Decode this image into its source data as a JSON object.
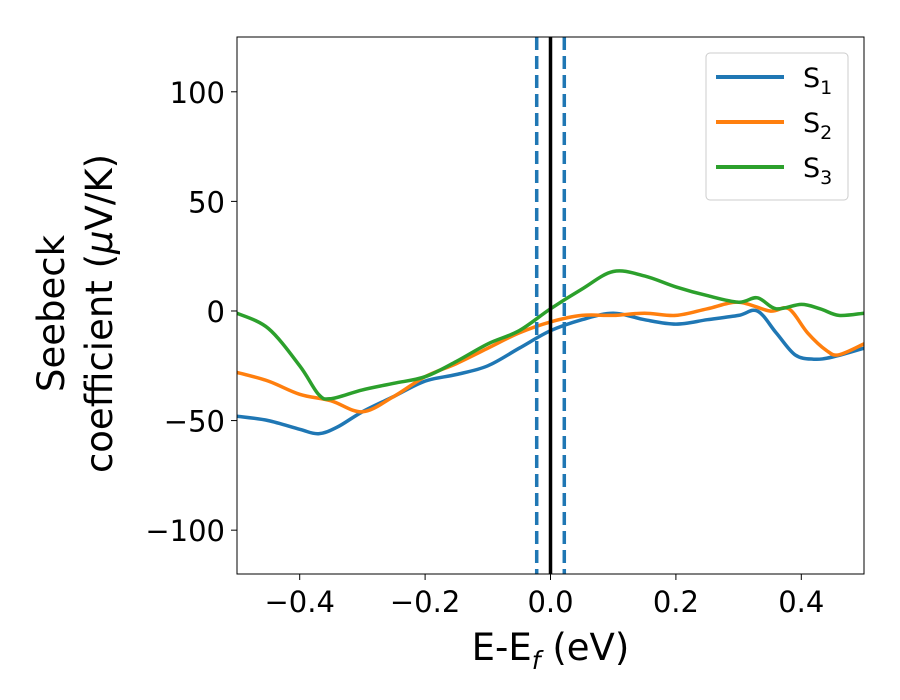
{
  "chart_data": {
    "type": "line",
    "xlabel": {
      "main": "E-E",
      "sub": "f",
      "tail": " (eV)"
    },
    "ylabel": {
      "line1": "Seebeck",
      "line2_pre": "coefficient  (",
      "line2_mu": "μ",
      "line2_post": "V/K)"
    },
    "xlim": [
      -0.5,
      0.5
    ],
    "ylim": [
      -120,
      125
    ],
    "xticks": [
      -0.4,
      -0.2,
      0.0,
      0.2,
      0.4
    ],
    "xtick_labels": [
      "−0.4",
      "−0.2",
      "0.0",
      "0.2",
      "0.4"
    ],
    "yticks": [
      100,
      50,
      0,
      -50,
      -100
    ],
    "ytick_labels": [
      "100",
      "50",
      "0",
      "−50",
      "−100"
    ],
    "grid": false,
    "legend_position": "top-right",
    "reference_lines": [
      {
        "x": 0.0,
        "style": "solid",
        "color": "#000000"
      },
      {
        "x": -0.022,
        "style": "dashed",
        "color": "#1f77b4"
      },
      {
        "x": 0.022,
        "style": "dashed",
        "color": "#1f77b4"
      }
    ],
    "series": [
      {
        "name": "S",
        "sub": "1",
        "color": "#1f77b4",
        "x": [
          -0.5,
          -0.45,
          -0.4,
          -0.37,
          -0.34,
          -0.3,
          -0.25,
          -0.2,
          -0.15,
          -0.1,
          -0.05,
          0.0,
          0.05,
          0.1,
          0.15,
          0.2,
          0.25,
          0.3,
          0.33,
          0.36,
          0.39,
          0.42,
          0.45,
          0.5
        ],
        "y": [
          -48,
          -50,
          -54,
          -56,
          -53,
          -46,
          -39,
          -32,
          -29,
          -25,
          -17,
          -9,
          -4,
          -1,
          -4,
          -6,
          -4,
          -2,
          0,
          -10,
          -20,
          -22,
          -21,
          -17
        ]
      },
      {
        "name": "S",
        "sub": "2",
        "color": "#ff7f0e",
        "x": [
          -0.5,
          -0.45,
          -0.4,
          -0.35,
          -0.3,
          -0.25,
          -0.2,
          -0.15,
          -0.1,
          -0.05,
          0.0,
          0.05,
          0.1,
          0.15,
          0.2,
          0.25,
          0.3,
          0.35,
          0.38,
          0.41,
          0.44,
          0.46,
          0.5
        ],
        "y": [
          -28,
          -32,
          -38,
          -41,
          -46,
          -39,
          -30,
          -24,
          -17,
          -10,
          -5,
          -2,
          -2,
          -1,
          -2,
          1,
          4,
          0,
          1,
          -10,
          -18,
          -20,
          -15
        ]
      },
      {
        "name": "S",
        "sub": "3",
        "color": "#2ca02c",
        "x": [
          -0.5,
          -0.45,
          -0.4,
          -0.37,
          -0.35,
          -0.3,
          -0.25,
          -0.2,
          -0.15,
          -0.1,
          -0.05,
          0.0,
          0.05,
          0.1,
          0.15,
          0.2,
          0.25,
          0.3,
          0.33,
          0.36,
          0.4,
          0.43,
          0.46,
          0.5
        ],
        "y": [
          -1,
          -8,
          -25,
          -38,
          -40,
          -36,
          -33,
          -30,
          -23,
          -15,
          -9,
          1,
          10,
          18,
          16,
          11,
          7,
          4,
          6,
          1,
          3,
          1,
          -2,
          -1
        ]
      }
    ]
  }
}
